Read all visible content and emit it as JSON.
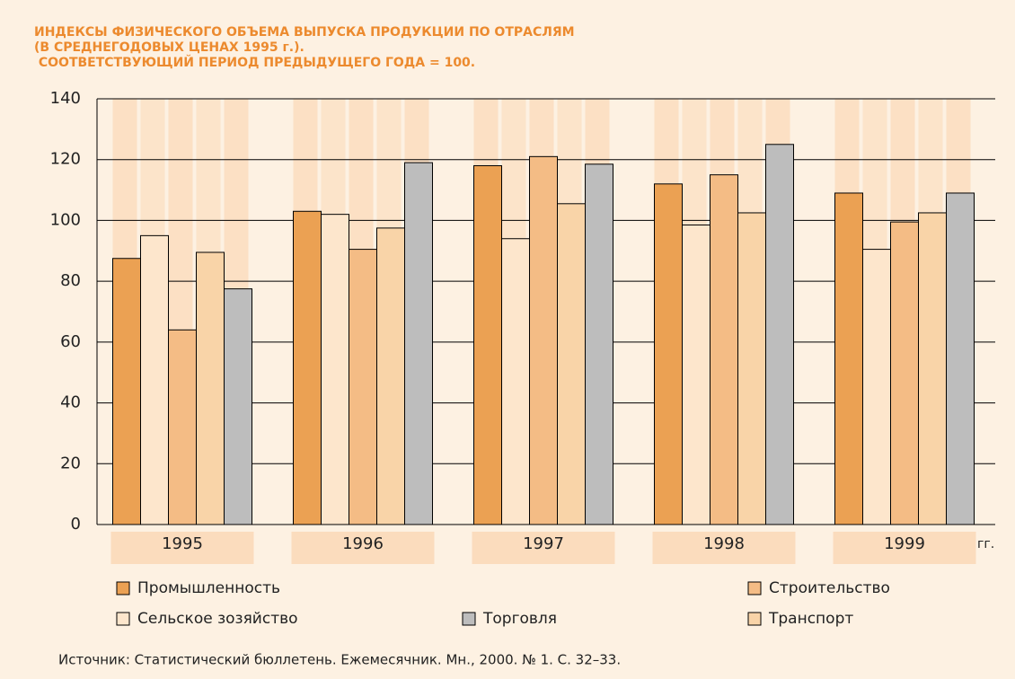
{
  "chart_data": {
    "type": "bar",
    "title": [
      "ИНДЕКСЫ ФИЗИЧЕСКОГО ОБЪЕМА ВЫПУСКА ПРОДУКЦИИ ПО ОТРАСЛЯМ",
      "(В СРЕДНЕГОДОВЫХ ЦЕНАХ 1995 г.).",
      " СООТВЕТСТВУЮЩИЙ ПЕРИОД ПРЕДЫДУЩЕГО ГОДА = 100."
    ],
    "x_label": "гг.",
    "categories": [
      "1995",
      "1996",
      "1997",
      "1998",
      "1999"
    ],
    "series": [
      {
        "name": "Промышленность",
        "color": "#eba153",
        "values": [
          87.5,
          103,
          118,
          112,
          109
        ]
      },
      {
        "name": "Сельское зозяйство",
        "color": "#fde6cc",
        "values": [
          95,
          102,
          94,
          98.5,
          90.5
        ]
      },
      {
        "name": "Строительство",
        "color": "#f4bc85",
        "values": [
          64,
          90.5,
          121,
          115,
          99.5
        ]
      },
      {
        "name": "Транспорт",
        "color": "#f9d4a8",
        "values": [
          89.5,
          97.5,
          105.5,
          102.5,
          102.5
        ]
      },
      {
        "name": "Торговля",
        "color": "#bdbdbd",
        "values": [
          77.5,
          119,
          118.5,
          125,
          109
        ]
      }
    ],
    "ylim": [
      0,
      140
    ],
    "yticks": [
      0,
      20,
      40,
      60,
      80,
      100,
      120,
      140
    ],
    "grid": true,
    "source": "Источник: Статистический бюллетень. Ежемесячник. Мн., 2000. № 1. С. 32–33."
  }
}
